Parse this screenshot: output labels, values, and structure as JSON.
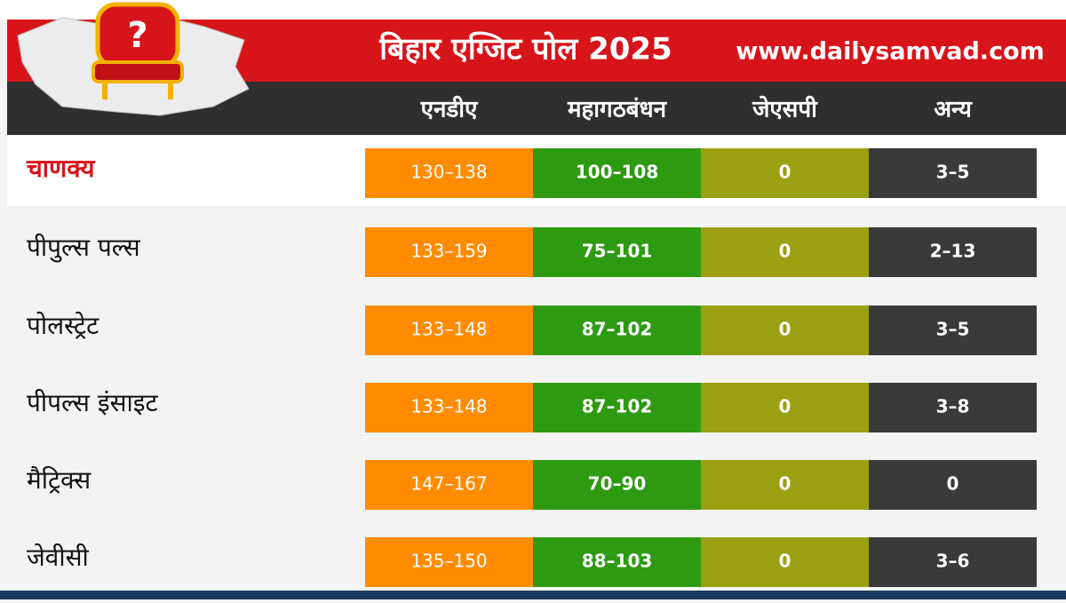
{
  "header": {
    "title": "बिहार एग्जिट पोल 2025",
    "website": "www.dailysamvad.com"
  },
  "table": {
    "columns": [
      "एनडीए",
      "महागठबंधन",
      "जेएसपी",
      "अन्य"
    ],
    "rows": [
      [
        "चाणक्य",
        "130–138",
        "100–108",
        "0",
        "3–5"
      ],
      [
        "पीपुल्स पल्स",
        "133–159",
        "75–101",
        "0",
        "2–13"
      ],
      [
        "पोलस्ट्रेट",
        "133–148",
        "87–102",
        "0",
        "3–5"
      ],
      [
        "पीपल्स इंसाइट",
        "133–148",
        "87–102",
        "0",
        "3–8"
      ],
      [
        "मैट्रिक्स",
        "147–167",
        "70–90",
        "0",
        "0"
      ],
      [
        "जेवीसी",
        "135–150",
        "88–103",
        "0",
        "3–6"
      ]
    ]
  }
}
